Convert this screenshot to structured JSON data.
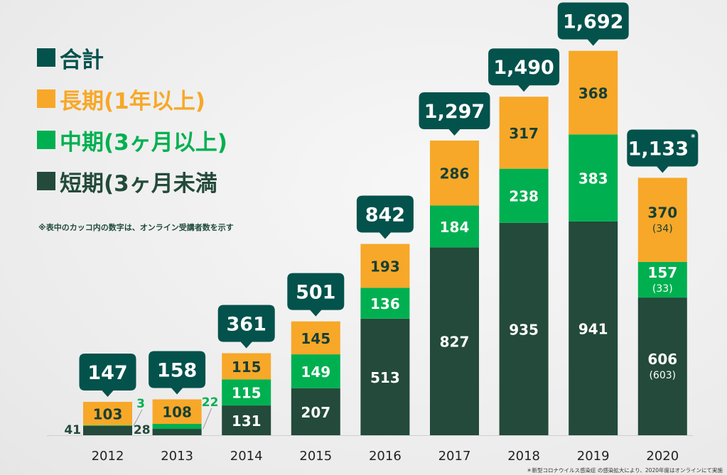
{
  "chart_data": {
    "type": "bar",
    "stacked": true,
    "categories": [
      "2012",
      "2013",
      "2014",
      "2015",
      "2016",
      "2017",
      "2018",
      "2019",
      "2020"
    ],
    "series": [
      {
        "name": "短期(3ヶ月未満)",
        "color": "#234a3a",
        "values": [
          41,
          28,
          131,
          207,
          513,
          827,
          935,
          941,
          606
        ],
        "online": [
          null,
          null,
          null,
          null,
          null,
          null,
          null,
          null,
          603
        ]
      },
      {
        "name": "中期(3ヶ月以上)",
        "color": "#00b050",
        "values": [
          3,
          22,
          115,
          149,
          136,
          184,
          238,
          383,
          157
        ],
        "online": [
          null,
          null,
          null,
          null,
          null,
          null,
          null,
          null,
          33
        ]
      },
      {
        "name": "長期(1年以上)",
        "color": "#f7a828",
        "values": [
          103,
          108,
          115,
          145,
          193,
          286,
          317,
          368,
          370
        ],
        "online": [
          null,
          null,
          null,
          null,
          null,
          null,
          null,
          null,
          34
        ]
      }
    ],
    "totals": [
      "147",
      "158",
      "361",
      "501",
      "842",
      "1,297",
      "1,490",
      "1,692",
      "1,133"
    ],
    "total_series": {
      "name": "合計",
      "color": "#03524c"
    },
    "total_marks": [
      "",
      "",
      "",
      "",
      "",
      "",
      "",
      "",
      "*"
    ],
    "legend_position": "top-left",
    "grid": false
  },
  "legend": [
    {
      "label": "合計",
      "color": "#03524c",
      "text_color": "#03524c"
    },
    {
      "label": "長期(1年以上)",
      "color": "#f7a828",
      "text_color": "#f7a828"
    },
    {
      "label": "中期(3ヶ月以上)",
      "color": "#00b050",
      "text_color": "#00b050"
    },
    {
      "label": "短期(3ヶ月未満",
      "color": "#234a3a",
      "text_color": "#234a3a"
    }
  ],
  "note": "※表中のカッコ内の数字は、オンライン受講者数を示す",
  "footnote": "＊新型コロナウイルス感染症 の感染拡大により、2020年度はオンラインにて実施"
}
